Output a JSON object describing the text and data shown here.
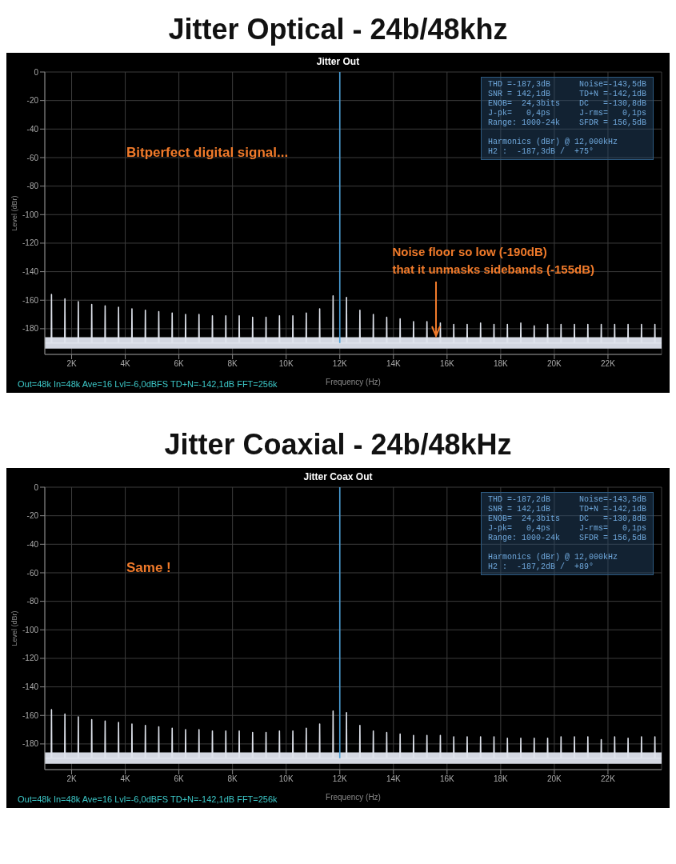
{
  "chart_data": [
    {
      "type": "line",
      "title": "Jitter Optical - 24b/48khz",
      "subtitle": "Jitter Out",
      "xlabel": "Frequency (Hz)",
      "ylabel": "Level (dBr)",
      "xlim": [
        1000,
        24000
      ],
      "xticks": [
        {
          "value": 2000,
          "label": "2K"
        },
        {
          "value": 4000,
          "label": "4K"
        },
        {
          "value": 6000,
          "label": "6K"
        },
        {
          "value": 8000,
          "label": "8K"
        },
        {
          "value": 10000,
          "label": "10K"
        },
        {
          "value": 12000,
          "label": "12K"
        },
        {
          "value": 14000,
          "label": "14K"
        },
        {
          "value": 16000,
          "label": "16K"
        },
        {
          "value": 18000,
          "label": "18K"
        },
        {
          "value": 20000,
          "label": "20K"
        },
        {
          "value": 22000,
          "label": "22K"
        }
      ],
      "ylim": [
        -198,
        0
      ],
      "yticks": [
        0,
        -20,
        -40,
        -60,
        -80,
        -100,
        -120,
        -140,
        -160,
        -180
      ],
      "grid": true,
      "bands": [
        {
          "axis": "y",
          "from": -194,
          "to": -186,
          "color": "#d4d8e2"
        }
      ],
      "series": [
        {
          "color": "#dfe3ec",
          "x": [
            1000,
            1240,
            1250,
            1260,
            1740,
            1750,
            1760,
            2240,
            2250,
            2260,
            2740,
            2750,
            2760,
            3240,
            3250,
            3260,
            3740,
            3750,
            3760,
            4240,
            4250,
            4260,
            4740,
            4750,
            4760,
            5240,
            5250,
            5260,
            5740,
            5750,
            5760,
            6240,
            6250,
            6260,
            6740,
            6750,
            6760,
            7240,
            7250,
            7260,
            7740,
            7750,
            7760,
            8240,
            8250,
            8260,
            8740,
            8750,
            8760,
            9240,
            9250,
            9260,
            9740,
            9750,
            9760,
            10240,
            10250,
            10260,
            10740,
            10750,
            10760,
            11240,
            11250,
            11260,
            11740,
            11750,
            11760,
            12240,
            12250,
            12260,
            12740,
            12750,
            12760,
            13240,
            13250,
            13260,
            13740,
            13750,
            13760,
            14240,
            14250,
            14260,
            14740,
            14750,
            14760,
            15240,
            15250,
            15260,
            15740,
            15750,
            15760,
            16240,
            16250,
            16260,
            16740,
            16750,
            16760,
            17240,
            17250,
            17260,
            17740,
            17750,
            17760,
            18240,
            18250,
            18260,
            18740,
            18750,
            18760,
            19240,
            19250,
            19260,
            19740,
            19750,
            19760,
            20240,
            20250,
            20260,
            20740,
            20750,
            20760,
            21240,
            21250,
            21260,
            21740,
            21750,
            21760,
            22240,
            22250,
            22260,
            22740,
            22750,
            22760,
            23240,
            23250,
            23260,
            23740,
            23750,
            23760,
            24000
          ],
          "values": [
            -190,
            -190,
            -156,
            -190,
            -190,
            -159,
            -190,
            -190,
            -161,
            -190,
            -190,
            -163,
            -190,
            -190,
            -164,
            -190,
            -190,
            -165,
            -190,
            -190,
            -166,
            -190,
            -190,
            -167,
            -190,
            -190,
            -168,
            -190,
            -190,
            -169,
            -190,
            -190,
            -170,
            -190,
            -190,
            -170,
            -190,
            -190,
            -171,
            -190,
            -190,
            -171,
            -190,
            -190,
            -171,
            -190,
            -190,
            -172,
            -190,
            -190,
            -172,
            -190,
            -190,
            -171,
            -190,
            -190,
            -171,
            -190,
            -190,
            -169,
            -190,
            -190,
            -166,
            -190,
            -190,
            -157,
            -190,
            -190,
            -158,
            -190,
            -190,
            -167,
            -190,
            -190,
            -170,
            -190,
            -190,
            -172,
            -190,
            -190,
            -173,
            -190,
            -190,
            -175,
            -190,
            -190,
            -175,
            -190,
            -190,
            -176,
            -190,
            -190,
            -177,
            -190,
            -190,
            -177,
            -190,
            -190,
            -176,
            -190,
            -190,
            -177,
            -190,
            -190,
            -177,
            -190,
            -190,
            -176,
            -190,
            -190,
            -178,
            -190,
            -190,
            -177,
            -190,
            -190,
            -177,
            -190,
            -190,
            -177,
            -190,
            -190,
            -177,
            -190,
            -190,
            -177,
            -190,
            -190,
            -177,
            -190,
            -190,
            -177,
            -190,
            -190,
            -177,
            -190,
            -190,
            -177,
            -190,
            -190
          ]
        },
        {
          "color": "#4a9fd8",
          "x": [
            12000,
            12000
          ],
          "values": [
            -190,
            0
          ]
        }
      ],
      "annotations": [
        "Bitperfect digital signal...",
        "THD =-187,3dB      Noise=-143,5dB\nSNR = 142,1dB      TD+N =-142,1dB\nENOB=  24,3bits    DC   =-130,8dB\nJ-pk=   0,4ps      J-rms=   0,1ps\nRange: 1000-24k    SFDR = 156,5dB\n\nHarmonics (dBr) @ 12,000kHz\nH2 :  -187,3dB /  +75°",
        "Out=48k In=48k Ave=16 Lvl=-6,0dBFS TD+N=-142,1dB FFT=256k",
        {
          "text": "Noise floor so low (-190dB)\nthat it unmasks sidebands (-155dB)",
          "x": 15600,
          "y": -186
        }
      ]
    },
    {
      "type": "line",
      "title": "Jitter Coaxial - 24b/48kHz",
      "subtitle": "Jitter Coax Out",
      "xlabel": "Frequency (Hz)",
      "ylabel": "Level (dBr)",
      "xlim": [
        1000,
        24000
      ],
      "xticks": [
        {
          "value": 2000,
          "label": "2K"
        },
        {
          "value": 4000,
          "label": "4K"
        },
        {
          "value": 6000,
          "label": "6K"
        },
        {
          "value": 8000,
          "label": "8K"
        },
        {
          "value": 10000,
          "label": "10K"
        },
        {
          "value": 12000,
          "label": "12K"
        },
        {
          "value": 14000,
          "label": "14K"
        },
        {
          "value": 16000,
          "label": "16K"
        },
        {
          "value": 18000,
          "label": "18K"
        },
        {
          "value": 20000,
          "label": "20K"
        },
        {
          "value": 22000,
          "label": "22K"
        }
      ],
      "ylim": [
        -198,
        0
      ],
      "yticks": [
        0,
        -20,
        -40,
        -60,
        -80,
        -100,
        -120,
        -140,
        -160,
        -180
      ],
      "grid": true,
      "bands": [
        {
          "axis": "y",
          "from": -194,
          "to": -186,
          "color": "#d4d8e2"
        }
      ],
      "series": [
        {
          "color": "#dfe3ec",
          "x": [
            1000,
            1240,
            1250,
            1260,
            1740,
            1750,
            1760,
            2240,
            2250,
            2260,
            2740,
            2750,
            2760,
            3240,
            3250,
            3260,
            3740,
            3750,
            3760,
            4240,
            4250,
            4260,
            4740,
            4750,
            4760,
            5240,
            5250,
            5260,
            5740,
            5750,
            5760,
            6240,
            6250,
            6260,
            6740,
            6750,
            6760,
            7240,
            7250,
            7260,
            7740,
            7750,
            7760,
            8240,
            8250,
            8260,
            8740,
            8750,
            8760,
            9240,
            9250,
            9260,
            9740,
            9750,
            9760,
            10240,
            10250,
            10260,
            10740,
            10750,
            10760,
            11240,
            11250,
            11260,
            11740,
            11750,
            11760,
            12240,
            12250,
            12260,
            12740,
            12750,
            12760,
            13240,
            13250,
            13260,
            13740,
            13750,
            13760,
            14240,
            14250,
            14260,
            14740,
            14750,
            14760,
            15240,
            15250,
            15260,
            15740,
            15750,
            15760,
            16240,
            16250,
            16260,
            16740,
            16750,
            16760,
            17240,
            17250,
            17260,
            17740,
            17750,
            17760,
            18240,
            18250,
            18260,
            18740,
            18750,
            18760,
            19240,
            19250,
            19260,
            19740,
            19750,
            19760,
            20240,
            20250,
            20260,
            20740,
            20750,
            20760,
            21240,
            21250,
            21260,
            21740,
            21750,
            21760,
            22240,
            22250,
            22260,
            22740,
            22750,
            22760,
            23240,
            23250,
            23260,
            23740,
            23750,
            23760,
            24000
          ],
          "values": [
            -190,
            -190,
            -156,
            -190,
            -190,
            -159,
            -190,
            -190,
            -161,
            -190,
            -190,
            -163,
            -190,
            -190,
            -164,
            -190,
            -190,
            -165,
            -190,
            -190,
            -166,
            -190,
            -190,
            -167,
            -190,
            -190,
            -168,
            -190,
            -190,
            -169,
            -190,
            -190,
            -170,
            -190,
            -190,
            -170,
            -190,
            -190,
            -171,
            -190,
            -190,
            -171,
            -190,
            -190,
            -171,
            -190,
            -190,
            -172,
            -190,
            -190,
            -172,
            -190,
            -190,
            -171,
            -190,
            -190,
            -171,
            -190,
            -190,
            -169,
            -190,
            -190,
            -166,
            -190,
            -190,
            -157,
            -190,
            -190,
            -158,
            -190,
            -190,
            -167,
            -190,
            -190,
            -171,
            -190,
            -190,
            -172,
            -190,
            -190,
            -173,
            -190,
            -190,
            -174,
            -190,
            -190,
            -174,
            -190,
            -190,
            -174,
            -190,
            -190,
            -175,
            -190,
            -190,
            -175,
            -190,
            -190,
            -175,
            -190,
            -190,
            -175,
            -190,
            -190,
            -176,
            -190,
            -190,
            -176,
            -190,
            -190,
            -176,
            -190,
            -190,
            -176,
            -190,
            -190,
            -175,
            -190,
            -190,
            -175,
            -190,
            -190,
            -175,
            -190,
            -190,
            -177,
            -190,
            -190,
            -175,
            -190,
            -190,
            -176,
            -190,
            -190,
            -175,
            -190,
            -190,
            -175,
            -190,
            -190
          ]
        },
        {
          "color": "#4a9fd8",
          "x": [
            12000,
            12000
          ],
          "values": [
            -190,
            0
          ]
        }
      ],
      "annotations": [
        "Same !",
        "THD =-187,2dB      Noise=-143,5dB\nSNR = 142,1dB      TD+N =-142,1dB\nENOB=  24,3bits    DC   =-130,8dB\nJ-pk=   0,4ps      J-rms=   0,1ps\nRange: 1000-24k    SFDR = 156,5dB\n\nHarmonics (dBr) @ 12,000kHz\nH2 :  -187,2dB /  +89°",
        "Out=48k In=48k Ave=16 Lvl=-6,0dBFS TD+N=-142,1dB FFT=256k"
      ]
    }
  ]
}
